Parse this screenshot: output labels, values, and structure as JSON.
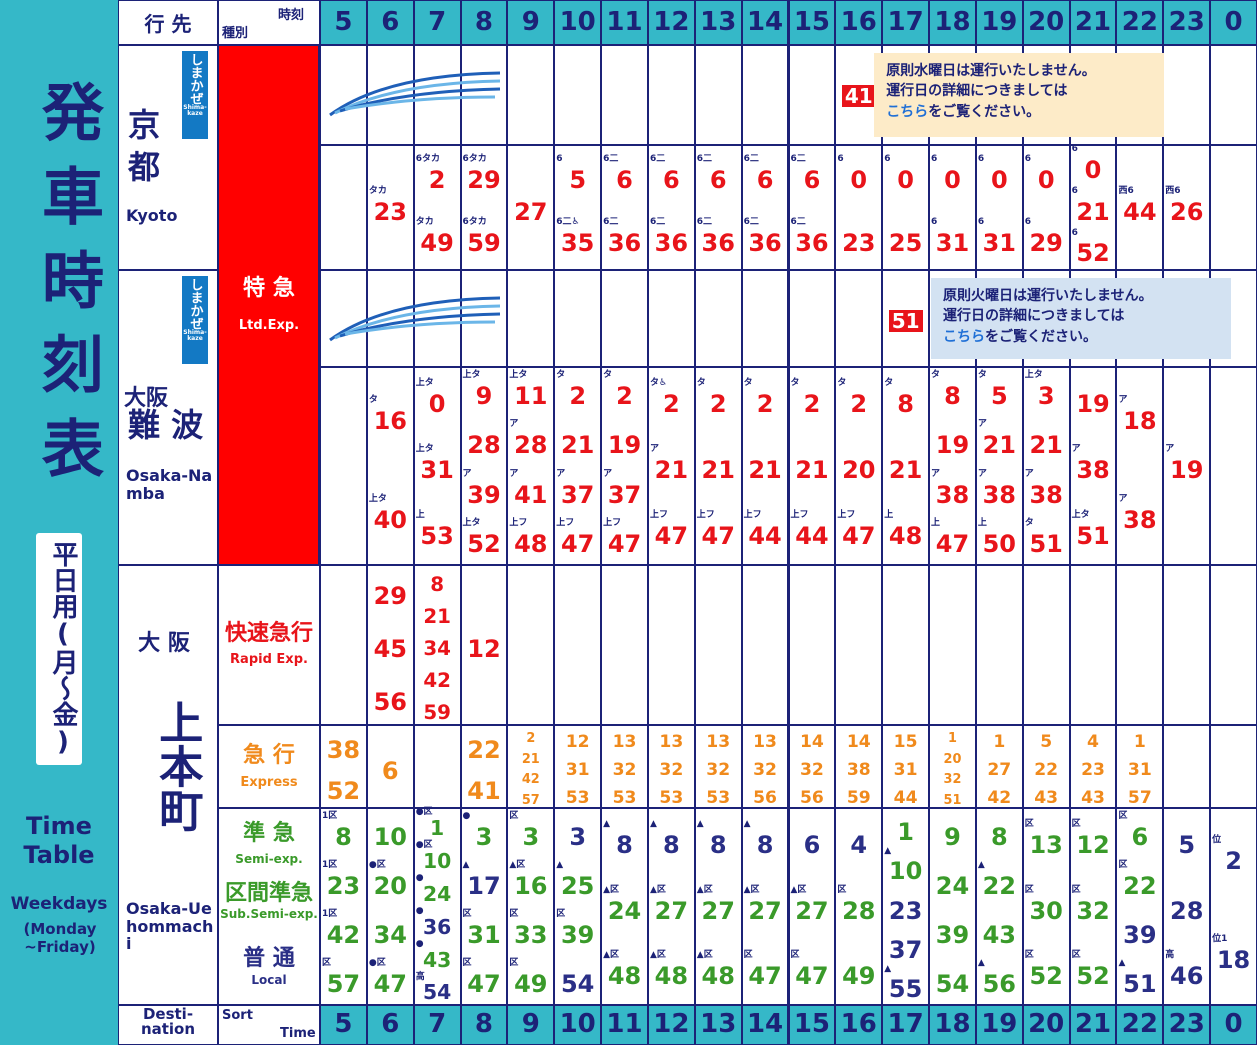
{
  "side": {
    "title": "発車時刻表",
    "weekday": "平日用(月〜金)",
    "en_title": "Time Table",
    "en_weekday": "Weekdays",
    "en_days": "(Monday ~Friday)"
  },
  "header": {
    "dest": "行 先",
    "type": "種別",
    "time": "時刻",
    "hours": [
      5,
      6,
      7,
      8,
      9,
      10,
      11,
      12,
      13,
      14,
      15,
      16,
      17,
      18,
      19,
      20,
      21,
      22,
      23,
      0
    ]
  },
  "footer": {
    "dest": "Desti-nation",
    "sort": "Sort",
    "time": "Time"
  },
  "destinations": [
    {
      "ja": "京 都",
      "en": "Kyoto",
      "shimakaze": "しまかぜ",
      "shimakaze_en": "Shima-kaze"
    },
    {
      "pre": "大阪",
      "ja": "難 波",
      "en": "Osaka-Namba",
      "shimakaze": "しまかぜ",
      "shimakaze_en": "Shima-kaze"
    },
    {
      "pre": "大 阪",
      "ja": "上本町",
      "en": "Osaka-Uehommachi"
    }
  ],
  "types": [
    {
      "ja": "特 急",
      "en": "Ltd.Exp."
    },
    {
      "ja": "快速急行",
      "en": "Rapid Exp."
    },
    {
      "ja": "急 行",
      "en": "Express"
    },
    {
      "ja": "準 急",
      "en": "Semi-exp."
    },
    {
      "ja": "区間準急",
      "en": "Sub.Semi-exp."
    },
    {
      "ja": "普 通",
      "en": "Local"
    }
  ],
  "rows": [
    {
      "color": "#e8141a",
      "shimakaze": true,
      "cells": [
        [],
        [],
        [],
        [],
        [],
        [],
        [],
        [],
        [],
        [],
        [],
        [
          {
            "m": 41
          }
        ],
        [],
        [],
        [],
        [],
        [],
        [],
        [],
        []
      ],
      "notice": {
        "lines": [
          "原則水曜日は運行いたしません。",
          "運行日の詳細につきましては"
        ],
        "link": "こちら",
        "tail": "をご覧ください。",
        "bg": "#fdebc8"
      }
    },
    {
      "color": "#e8141a",
      "cells": [
        [],
        [
          {
            "m": 23,
            "n": "タカ"
          }
        ],
        [
          {
            "m": 2,
            "n": "6タカ"
          },
          {
            "m": 49,
            "n": "タカ"
          }
        ],
        [
          {
            "m": 29,
            "n": "6タカ"
          },
          {
            "m": 59,
            "n": "6タカ"
          }
        ],
        [
          {
            "m": 27
          }
        ],
        [
          {
            "m": 5,
            "n": "6"
          },
          {
            "m": 35,
            "n": "6二♿"
          }
        ],
        [
          {
            "m": 6,
            "n": "6二"
          },
          {
            "m": 36,
            "n": "6二"
          }
        ],
        [
          {
            "m": 6,
            "n": "6二"
          },
          {
            "m": 36,
            "n": "6二"
          }
        ],
        [
          {
            "m": 6,
            "n": "6二"
          },
          {
            "m": 36,
            "n": "6二"
          }
        ],
        [
          {
            "m": 6,
            "n": "6二"
          },
          {
            "m": 36,
            "n": "6二"
          }
        ],
        [
          {
            "m": 6,
            "n": "6二"
          },
          {
            "m": 36,
            "n": "6二"
          }
        ],
        [
          {
            "m": 0,
            "n": "6"
          },
          {
            "m": 23
          }
        ],
        [
          {
            "m": 0,
            "n": "6"
          },
          {
            "m": 25
          }
        ],
        [
          {
            "m": 0,
            "n": "6"
          },
          {
            "m": 31,
            "n": "6"
          }
        ],
        [
          {
            "m": 0,
            "n": "6"
          },
          {
            "m": 31,
            "n": "6"
          }
        ],
        [
          {
            "m": 0,
            "n": "6"
          },
          {
            "m": 29,
            "n": "6"
          }
        ],
        [
          {
            "m": 0,
            "n": "6"
          },
          {
            "m": 21,
            "n": "6"
          },
          {
            "m": 52,
            "n": "6"
          }
        ],
        [
          {
            "m": 44,
            "n": "西6"
          }
        ],
        [
          {
            "m": 26,
            "n": "西6"
          }
        ],
        []
      ]
    },
    {
      "color": "#e8141a",
      "shimakaze": true,
      "cells": [
        [],
        [],
        [],
        [],
        [],
        [],
        [],
        [],
        [],
        [],
        [],
        [],
        [
          {
            "m": 51
          }
        ],
        [],
        [],
        [],
        [],
        [],
        [],
        []
      ],
      "notice": {
        "lines": [
          "原則火曜日は運行いたしません。",
          "運行日の詳細につきましては"
        ],
        "link": "こちら",
        "tail": "をご覧ください。",
        "bg": "#d3e2f2"
      }
    },
    {
      "color": "#e8141a",
      "cells": [
        [],
        [
          {
            "m": 16,
            "n": "タ"
          },
          {
            "m": 40,
            "n": "上タ"
          }
        ],
        [
          {
            "m": 0,
            "n": "上タ"
          },
          {
            "m": 31,
            "n": "上タ"
          },
          {
            "m": 53,
            "n": "上"
          }
        ],
        [
          {
            "m": 9,
            "n": "上タ"
          },
          {
            "m": 28
          },
          {
            "m": 39,
            "n": "ア"
          },
          {
            "m": 52,
            "n": "上タ"
          }
        ],
        [
          {
            "m": 11,
            "n": "上タ"
          },
          {
            "m": 28,
            "n": "ア"
          },
          {
            "m": 41,
            "n": "ア"
          },
          {
            "m": 48,
            "n": "上フ"
          }
        ],
        [
          {
            "m": 2,
            "n": "タ"
          },
          {
            "m": 21
          },
          {
            "m": 37,
            "n": "ア"
          },
          {
            "m": 47,
            "n": "上フ"
          }
        ],
        [
          {
            "m": 2,
            "n": "タ"
          },
          {
            "m": 19
          },
          {
            "m": 37,
            "n": "ア"
          },
          {
            "m": 47,
            "n": "上フ"
          }
        ],
        [
          {
            "m": 2,
            "n": "タ♿"
          },
          {
            "m": 21,
            "n": "ア"
          },
          {
            "m": 47,
            "n": "上フ"
          }
        ],
        [
          {
            "m": 2,
            "n": "タ"
          },
          {
            "m": 21
          },
          {
            "m": 47,
            "n": "上フ"
          }
        ],
        [
          {
            "m": 2,
            "n": "タ"
          },
          {
            "m": 21
          },
          {
            "m": 44,
            "n": "上フ"
          }
        ],
        [
          {
            "m": 2,
            "n": "タ"
          },
          {
            "m": 21
          },
          {
            "m": 44,
            "n": "上フ"
          }
        ],
        [
          {
            "m": 2,
            "n": "タ"
          },
          {
            "m": 20
          },
          {
            "m": 47,
            "n": "上フ"
          }
        ],
        [
          {
            "m": 8,
            "n": "タ"
          },
          {
            "m": 21
          },
          {
            "m": 48,
            "n": "上"
          }
        ],
        [
          {
            "m": 8,
            "n": "タ"
          },
          {
            "m": 19
          },
          {
            "m": 38,
            "n": "ア"
          },
          {
            "m": 47,
            "n": "上"
          }
        ],
        [
          {
            "m": 5,
            "n": "タ"
          },
          {
            "m": 21,
            "n": "ア"
          },
          {
            "m": 38,
            "n": "ア"
          },
          {
            "m": 50,
            "n": "上"
          }
        ],
        [
          {
            "m": 3,
            "n": "上タ"
          },
          {
            "m": 21
          },
          {
            "m": 38,
            "n": "ア"
          },
          {
            "m": 51,
            "n": "タ"
          }
        ],
        [
          {
            "m": 19
          },
          {
            "m": 38,
            "n": "ア"
          },
          {
            "m": 51,
            "n": "上タ"
          }
        ],
        [
          {
            "m": 18,
            "n": "ア"
          },
          {
            "m": 38,
            "n": "ア"
          }
        ],
        [
          {
            "m": 19,
            "n": "ア"
          }
        ],
        []
      ]
    },
    {
      "color": "#e8141a",
      "cells": [
        [],
        [
          {
            "m": 29
          },
          {
            "m": 45
          },
          {
            "m": 56
          }
        ],
        [
          {
            "m": 8
          },
          {
            "m": 21
          },
          {
            "m": 34
          },
          {
            "m": 42
          },
          {
            "m": 59
          }
        ],
        [
          {
            "m": 12
          }
        ],
        [],
        [],
        [],
        [],
        [],
        [],
        [],
        [],
        [],
        [],
        [],
        [],
        [],
        [],
        [],
        []
      ]
    },
    {
      "color": "#f08a1c",
      "cells": [
        [
          {
            "m": 38
          },
          {
            "m": 52
          }
        ],
        [
          {
            "m": 6
          }
        ],
        [],
        [
          {
            "m": 22
          },
          {
            "m": 41
          }
        ],
        [
          {
            "m": 2
          },
          {
            "m": 21
          },
          {
            "m": 42
          },
          {
            "m": 57
          }
        ],
        [
          {
            "m": 12
          },
          {
            "m": 31
          },
          {
            "m": 53
          }
        ],
        [
          {
            "m": 13
          },
          {
            "m": 32
          },
          {
            "m": 53
          }
        ],
        [
          {
            "m": 13
          },
          {
            "m": 32
          },
          {
            "m": 53
          }
        ],
        [
          {
            "m": 13
          },
          {
            "m": 32
          },
          {
            "m": 53
          }
        ],
        [
          {
            "m": 13
          },
          {
            "m": 32
          },
          {
            "m": 56
          }
        ],
        [
          {
            "m": 14
          },
          {
            "m": 32
          },
          {
            "m": 56
          }
        ],
        [
          {
            "m": 14
          },
          {
            "m": 38
          },
          {
            "m": 59
          }
        ],
        [
          {
            "m": 15
          },
          {
            "m": 31
          },
          {
            "m": 44
          }
        ],
        [
          {
            "m": 1
          },
          {
            "m": 20
          },
          {
            "m": 32
          },
          {
            "m": 51
          }
        ],
        [
          {
            "m": 1
          },
          {
            "m": 27
          },
          {
            "m": 42
          }
        ],
        [
          {
            "m": 5
          },
          {
            "m": 22
          },
          {
            "m": 43
          }
        ],
        [
          {
            "m": 4
          },
          {
            "m": 23
          },
          {
            "m": 43
          }
        ],
        [
          {
            "m": 1
          },
          {
            "m": 31
          },
          {
            "m": 57
          }
        ],
        [],
        []
      ]
    },
    {
      "color": "#3a9a2a",
      "cells": [
        [
          {
            "m": 8,
            "n": "1区"
          },
          {
            "m": 23,
            "n": "1区"
          },
          {
            "m": 42,
            "n": "1区"
          },
          {
            "m": 57,
            "n": "区"
          }
        ],
        [
          {
            "m": 10
          },
          {
            "m": 20,
            "n": "●区"
          },
          {
            "m": 34
          },
          {
            "m": 47,
            "n": "●区"
          }
        ],
        [
          {
            "m": 1,
            "n": "●区"
          },
          {
            "m": 10,
            "n": "●区"
          },
          {
            "m": 24,
            "n": "●"
          },
          {
            "m": 36,
            "n": "●",
            "c": "#2a2f86"
          },
          {
            "m": 43,
            "n": "●"
          },
          {
            "m": 54,
            "n": "高",
            "c": "#2a2f86"
          }
        ],
        [
          {
            "m": 3,
            "n": "●"
          },
          {
            "m": 17,
            "n": "▲",
            "c": "#2a2f86"
          },
          {
            "m": 31,
            "n": "区"
          },
          {
            "m": 47,
            "n": "区"
          }
        ],
        [
          {
            "m": 3,
            "n": "区"
          },
          {
            "m": 16,
            "n": "▲区"
          },
          {
            "m": 33,
            "n": "区"
          },
          {
            "m": 49,
            "n": "区"
          }
        ],
        [
          {
            "m": 3,
            "c": "#2a2f86"
          },
          {
            "m": 25,
            "n": "▲"
          },
          {
            "m": 39,
            "n": "区"
          },
          {
            "m": 54,
            "c": "#2a2f86"
          }
        ],
        [
          {
            "m": 8,
            "n": "▲",
            "c": "#2a2f86"
          },
          {
            "m": 24,
            "n": "▲区"
          },
          {
            "m": 48,
            "n": "▲区"
          }
        ],
        [
          {
            "m": 8,
            "n": "▲",
            "c": "#2a2f86"
          },
          {
            "m": 27,
            "n": "▲区"
          },
          {
            "m": 48,
            "n": "▲区"
          }
        ],
        [
          {
            "m": 8,
            "n": "▲",
            "c": "#2a2f86"
          },
          {
            "m": 27,
            "n": "▲区"
          },
          {
            "m": 48,
            "n": "▲区"
          }
        ],
        [
          {
            "m": 8,
            "n": "▲",
            "c": "#2a2f86"
          },
          {
            "m": 27,
            "n": "▲区"
          },
          {
            "m": 47,
            "n": "区"
          }
        ],
        [
          {
            "m": 6,
            "c": "#2a2f86"
          },
          {
            "m": 27,
            "n": "▲区"
          },
          {
            "m": 47,
            "n": "区"
          }
        ],
        [
          {
            "m": 4,
            "c": "#2a2f86"
          },
          {
            "m": 28,
            "n": "区"
          },
          {
            "m": 49
          }
        ],
        [
          {
            "m": 1
          },
          {
            "m": 10,
            "n": "▲"
          },
          {
            "m": 23,
            "c": "#2a2f86"
          },
          {
            "m": 37,
            "c": "#2a2f86"
          },
          {
            "m": 55,
            "n": "▲",
            "c": "#2a2f86"
          }
        ],
        [
          {
            "m": 9
          },
          {
            "m": 24
          },
          {
            "m": 39
          },
          {
            "m": 54
          }
        ],
        [
          {
            "m": 8
          },
          {
            "m": 22,
            "n": "▲"
          },
          {
            "m": 43
          },
          {
            "m": 56,
            "n": "▲"
          }
        ],
        [
          {
            "m": 13,
            "n": "区"
          },
          {
            "m": 30,
            "n": "区"
          },
          {
            "m": 52,
            "n": "区"
          }
        ],
        [
          {
            "m": 12,
            "n": "区"
          },
          {
            "m": 32,
            "n": "区"
          },
          {
            "m": 52,
            "n": "区"
          }
        ],
        [
          {
            "m": 6,
            "n": "区"
          },
          {
            "m": 22,
            "n": "区"
          },
          {
            "m": 39,
            "c": "#2a2f86"
          },
          {
            "m": 51,
            "n": "▲",
            "c": "#2a2f86"
          }
        ],
        [
          {
            "m": 5,
            "c": "#2a2f86"
          },
          {
            "m": 28,
            "c": "#2a2f86"
          },
          {
            "m": 46,
            "n": "高",
            "c": "#2a2f86"
          }
        ],
        [
          {
            "m": 2,
            "n": "位",
            "c": "#2a2f86"
          },
          {
            "m": 18,
            "n": "位1",
            "c": "#2a2f86"
          }
        ]
      ]
    }
  ]
}
